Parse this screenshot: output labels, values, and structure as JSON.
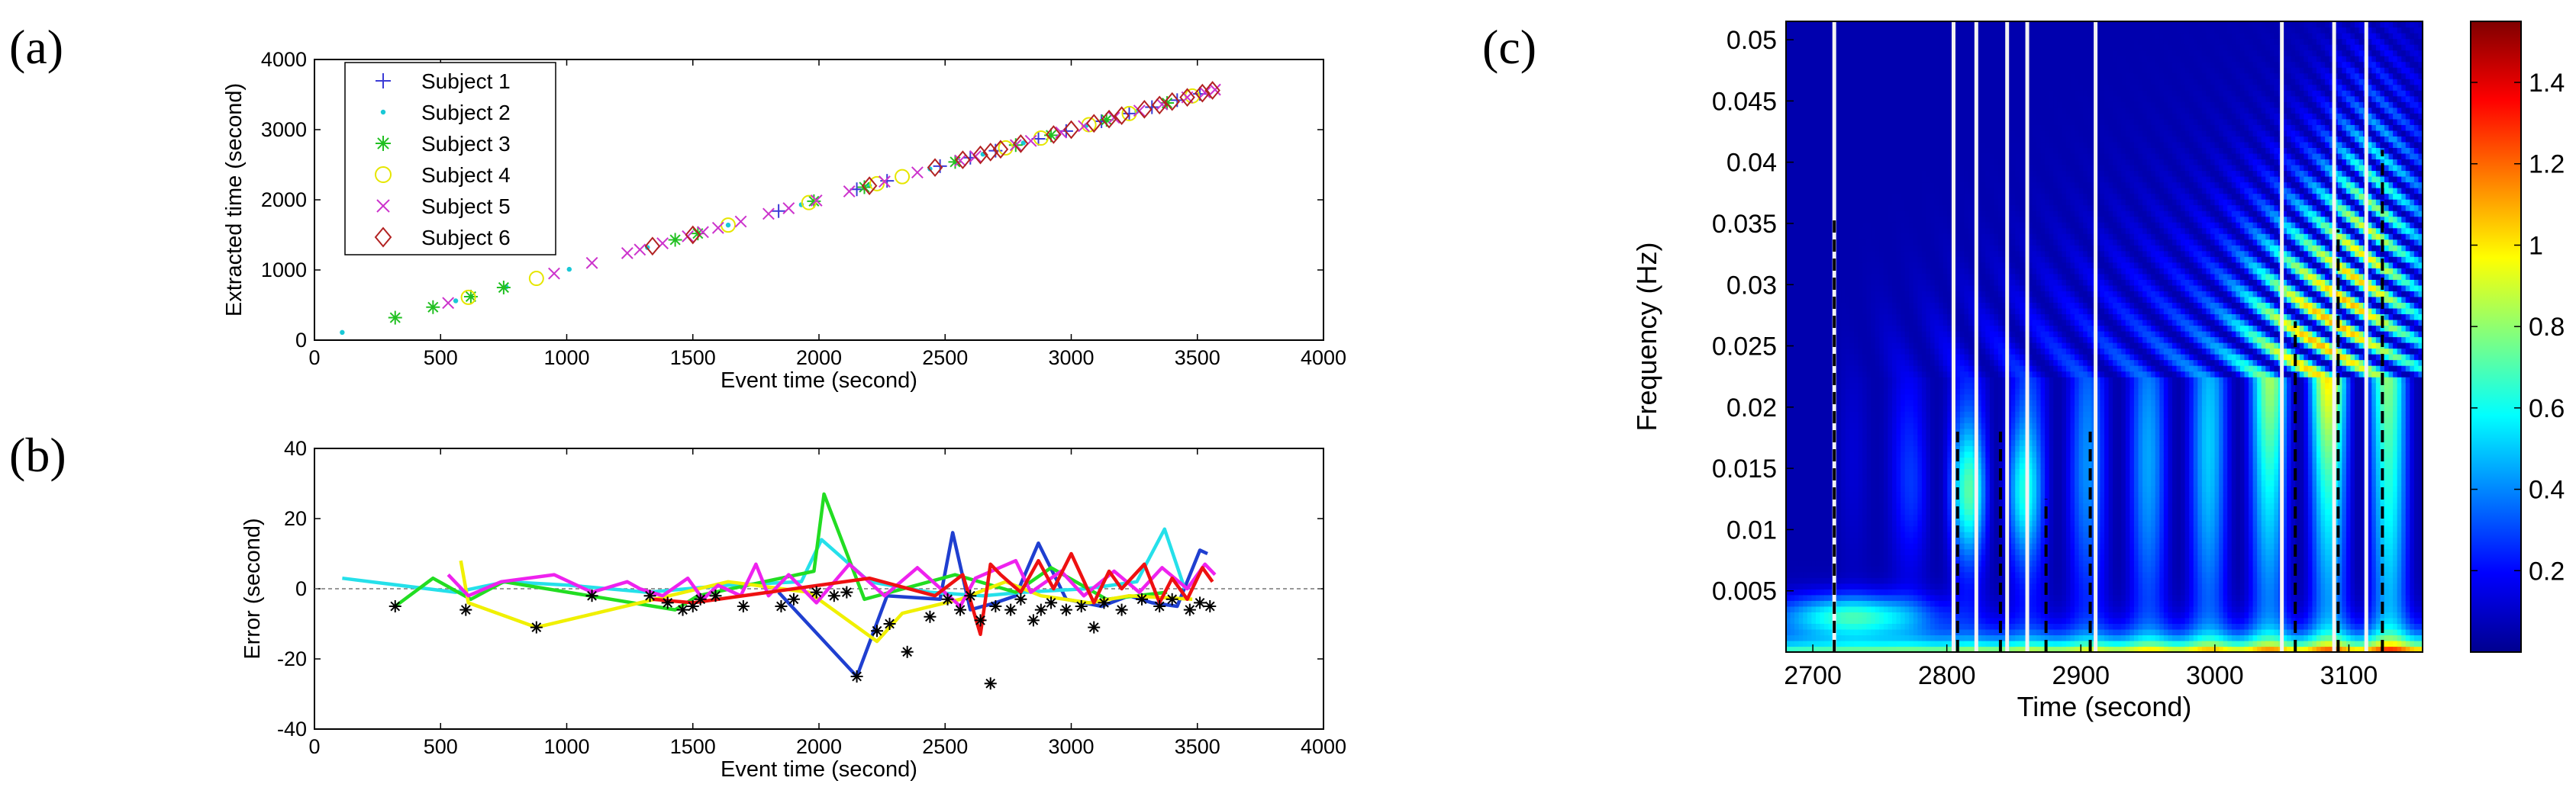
{
  "figure": {
    "labels": {
      "a": "(a)",
      "b": "(b)",
      "c": "(c)"
    }
  },
  "chart_data": [
    {
      "id": "a",
      "type": "scatter",
      "xlabel": "Event time (second)",
      "ylabel": "Extracted time (second)",
      "xlim": [
        0,
        4000
      ],
      "ylim": [
        0,
        4000
      ],
      "xticks": [
        "0",
        "500",
        "1000",
        "1500",
        "2000",
        "2500",
        "3000",
        "3500",
        "4000"
      ],
      "yticks": [
        "0",
        "1000",
        "2000",
        "3000",
        "4000"
      ],
      "legend_position": "top-left",
      "series": [
        {
          "name": "Subject 1",
          "marker": "plus",
          "color": "#3b3bd6",
          "x": [
            1840,
            2150,
            2270,
            2480,
            2600,
            2700,
            2870,
            2980,
            3120,
            3230,
            3320,
            3420,
            3510
          ],
          "y": [
            1840,
            2150,
            2270,
            2480,
            2600,
            2700,
            2870,
            2980,
            3120,
            3230,
            3320,
            3420,
            3510
          ]
        },
        {
          "name": "Subject 2",
          "marker": "dot",
          "color": "#19c8d6",
          "x": [
            110,
            560,
            760,
            1010,
            1320,
            1640,
            1930,
            2200,
            2440,
            2650,
            2810,
            3060,
            3260
          ],
          "y": [
            110,
            560,
            760,
            1010,
            1320,
            1640,
            1930,
            2200,
            2440,
            2650,
            2810,
            3060,
            3260
          ]
        },
        {
          "name": "Subject 3",
          "marker": "asterisk",
          "color": "#22c022",
          "x": [
            320,
            470,
            620,
            750,
            1430,
            1520,
            1980,
            2180,
            2540,
            2780,
            2920,
            3140,
            3380
          ],
          "y": [
            320,
            470,
            620,
            750,
            1430,
            1520,
            1980,
            2180,
            2540,
            2780,
            2920,
            3140,
            3380
          ]
        },
        {
          "name": "Subject 4",
          "marker": "circle",
          "color": "#e6e600",
          "x": [
            610,
            880,
            1640,
            1960,
            2230,
            2330,
            2740,
            2880,
            3070,
            3230,
            3480
          ],
          "y": [
            610,
            880,
            1640,
            1960,
            2230,
            2330,
            2740,
            2880,
            3070,
            3230,
            3480
          ]
        },
        {
          "name": "Subject 5",
          "marker": "cross",
          "color": "#cc33cc",
          "x": [
            530,
            950,
            1100,
            1240,
            1290,
            1380,
            1480,
            1540,
            1600,
            1690,
            1800,
            1880,
            1990,
            2120,
            2260,
            2390,
            2560,
            2620,
            2780,
            2840,
            2960,
            3050,
            3170,
            3270,
            3360,
            3460,
            3530,
            3570
          ],
          "y": [
            530,
            950,
            1100,
            1240,
            1290,
            1380,
            1480,
            1540,
            1600,
            1690,
            1800,
            1880,
            1990,
            2120,
            2260,
            2390,
            2560,
            2620,
            2780,
            2840,
            2960,
            3050,
            3170,
            3270,
            3360,
            3460,
            3530,
            3570
          ]
        },
        {
          "name": "Subject 6",
          "marker": "diamond",
          "color": "#b22222",
          "x": [
            1340,
            1500,
            2200,
            2460,
            2570,
            2640,
            2680,
            2720,
            2800,
            2930,
            3000,
            3090,
            3150,
            3200,
            3290,
            3350,
            3400,
            3460,
            3520,
            3560
          ],
          "y": [
            1340,
            1500,
            2200,
            2460,
            2570,
            2640,
            2680,
            2720,
            2800,
            2930,
            3000,
            3090,
            3150,
            3200,
            3290,
            3350,
            3400,
            3460,
            3520,
            3560
          ]
        }
      ]
    },
    {
      "id": "b",
      "type": "line",
      "xlabel": "Event time (second)",
      "ylabel": "Error (second)",
      "xlim": [
        0,
        4000
      ],
      "ylim": [
        -40,
        40
      ],
      "xticks": [
        "0",
        "500",
        "1000",
        "1500",
        "2000",
        "2500",
        "3000",
        "3500",
        "4000"
      ],
      "yticks": [
        "40",
        "20",
        "0",
        "-20",
        "-40"
      ],
      "reference_line_y": 0,
      "series": [
        {
          "name": "Subject 1",
          "color": "#1f3fd0",
          "x": [
            1840,
            2150,
            2270,
            2480,
            2530,
            2600,
            2700,
            2780,
            2870,
            2980,
            3120,
            3230,
            3320,
            3420,
            3510,
            3540
          ],
          "y": [
            -1,
            -25,
            -2,
            -3,
            16,
            -6,
            -4,
            -2,
            13,
            -3,
            -5,
            -2,
            -4,
            -5,
            11,
            10
          ]
        },
        {
          "name": "Subject 2",
          "color": "#25e0ea",
          "x": [
            110,
            560,
            760,
            1010,
            1320,
            1640,
            1930,
            2010,
            2200,
            2440,
            2650,
            2810,
            3060,
            3260,
            3370,
            3450
          ],
          "y": [
            3,
            -1,
            2,
            1,
            -1,
            1,
            2,
            14,
            2,
            -1,
            -2,
            -1,
            0,
            2,
            17,
            0
          ]
        },
        {
          "name": "Subject 3",
          "color": "#22dd22",
          "x": [
            320,
            470,
            620,
            750,
            1430,
            1520,
            1980,
            2020,
            2180,
            2540,
            2780,
            2920,
            3140,
            3380
          ],
          "y": [
            -5,
            3,
            -3,
            2,
            -6,
            -2,
            5,
            27,
            -3,
            4,
            -1,
            6,
            -3,
            -1
          ]
        },
        {
          "name": "Subject 4",
          "color": "#f0f000",
          "x": [
            580,
            610,
            880,
            1640,
            1960,
            2230,
            2330,
            2560,
            2740,
            2880,
            3070,
            3230,
            3480
          ],
          "y": [
            8,
            -4,
            -11,
            2,
            -1,
            -15,
            -7,
            -3,
            2,
            -2,
            -4,
            -2,
            -3
          ]
        },
        {
          "name": "Subject 5",
          "color": "#ee22ee",
          "x": [
            530,
            610,
            740,
            950,
            1100,
            1240,
            1290,
            1380,
            1480,
            1540,
            1600,
            1690,
            1750,
            1800,
            1880,
            1990,
            2120,
            2260,
            2390,
            2560,
            2620,
            2780,
            2840,
            2960,
            3050,
            3170,
            3270,
            3360,
            3460,
            3530,
            3570
          ],
          "y": [
            4,
            -2,
            2,
            4,
            -1,
            2,
            0,
            -2,
            3,
            -3,
            1,
            -2,
            7,
            -2,
            4,
            -4,
            7,
            -2,
            6,
            -5,
            3,
            8,
            -1,
            5,
            -2,
            5,
            -1,
            6,
            0,
            7,
            4
          ]
        },
        {
          "name": "Subject 6",
          "color": "#ee1111",
          "x": [
            1340,
            1500,
            2200,
            2460,
            2570,
            2640,
            2680,
            2720,
            2800,
            2870,
            2930,
            3000,
            3090,
            3150,
            3200,
            3290,
            3350,
            3400,
            3460,
            3520,
            3560
          ],
          "y": [
            -3,
            -4,
            3,
            -2,
            4,
            -13,
            7,
            4,
            -1,
            8,
            0,
            10,
            -4,
            5,
            0,
            7,
            -4,
            3,
            -3,
            6,
            2
          ]
        }
      ],
      "event_markers": {
        "marker": "asterisk",
        "color": "#000000",
        "x": [
          320,
          600,
          880,
          1100,
          1330,
          1400,
          1460,
          1500,
          1530,
          1590,
          1700,
          1850,
          1900,
          1990,
          2060,
          2110,
          2150,
          2230,
          2280,
          2350,
          2440,
          2510,
          2560,
          2600,
          2640,
          2680,
          2700,
          2760,
          2800,
          2850,
          2880,
          2920,
          2980,
          3040,
          3090,
          3130,
          3200,
          3280,
          3350,
          3400,
          3470,
          3510,
          3550
        ],
        "y": [
          -5,
          -6,
          -11,
          -2,
          -2,
          -4,
          -6,
          -5,
          -3,
          -2,
          -5,
          -5,
          -3,
          -1,
          -2,
          -1,
          -25,
          -12,
          -10,
          -18,
          -8,
          -3,
          -6,
          -2,
          -9,
          -27,
          -5,
          -6,
          -3,
          -9,
          -6,
          -4,
          -6,
          -5,
          -11,
          -4,
          -6,
          -3,
          -5,
          -3,
          -6,
          -4,
          -5
        ]
      }
    },
    {
      "id": "c",
      "type": "heatmap",
      "xlabel": "Time (second)",
      "ylabel": "Frequency (Hz)",
      "xlim": [
        2680,
        3155
      ],
      "ylim": [
        0,
        0.0515
      ],
      "xticks": [
        "2700",
        "2800",
        "2900",
        "3000",
        "3100"
      ],
      "yticks": [
        "0.005",
        "0.01",
        "0.015",
        "0.02",
        "0.025",
        "0.03",
        "0.035",
        "0.04",
        "0.045",
        "0.05"
      ],
      "colorbar": {
        "ticks": [
          "0.2",
          "0.4",
          "0.6",
          "0.8",
          "1",
          "1.2",
          "1.4"
        ],
        "range": [
          0,
          1.55
        ]
      },
      "white_lines_x": [
        2716,
        2805,
        2822,
        2845,
        2860,
        2911,
        3050,
        3089,
        3113
      ],
      "dashed_lines": [
        {
          "x": 2716,
          "ymax": 0.0355
        },
        {
          "x": 2808,
          "ymax": 0.018
        },
        {
          "x": 2840,
          "ymax": 0.018
        },
        {
          "x": 2874,
          "ymax": 0.0125
        },
        {
          "x": 2907,
          "ymax": 0.018
        },
        {
          "x": 3060,
          "ymax": 0.027
        },
        {
          "x": 3092,
          "ymax": 0.0345
        },
        {
          "x": 3125,
          "ymax": 0.041
        }
      ]
    }
  ]
}
